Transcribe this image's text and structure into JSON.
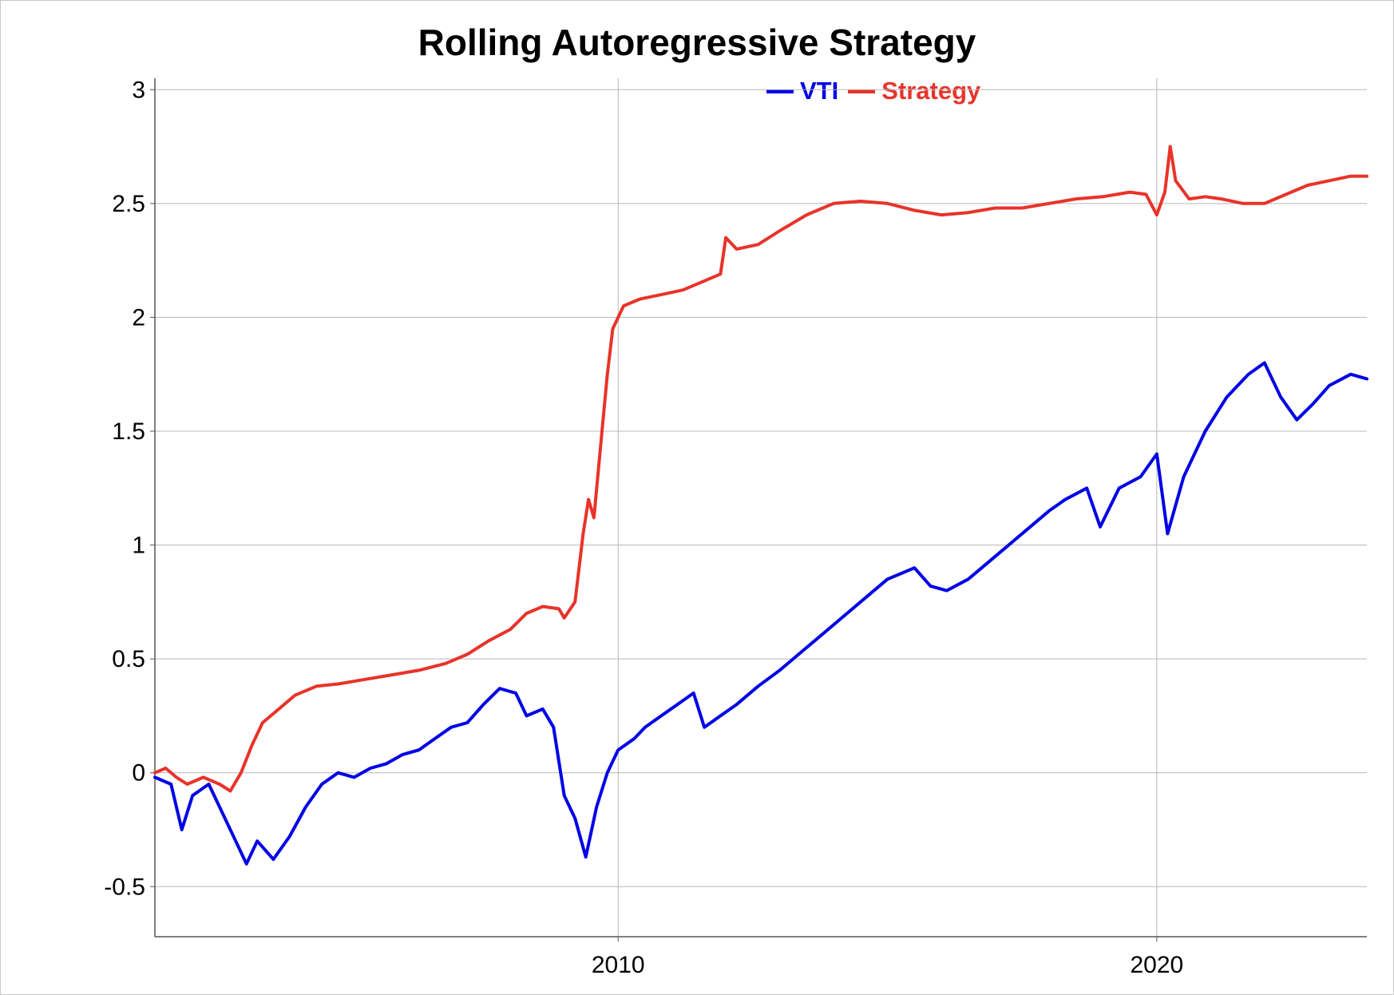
{
  "chart_data": {
    "type": "line",
    "title": "Rolling Autoregressive Strategy",
    "xlabel": "",
    "ylabel": "",
    "ylim": [
      -0.72,
      3.05
    ],
    "xlim": [
      2001.4,
      2023.9
    ],
    "y_ticks": [
      "-0.5",
      "0",
      "0.5",
      "1",
      "1.5",
      "2",
      "2.5",
      "3"
    ],
    "x_ticks": [
      "2010",
      "2020"
    ],
    "grid": true,
    "legend_position": "top-center",
    "series": [
      {
        "name": "VTI",
        "color": "#0000e6",
        "points": [
          [
            2001.4,
            -0.02
          ],
          [
            2001.7,
            -0.05
          ],
          [
            2001.9,
            -0.25
          ],
          [
            2002.1,
            -0.1
          ],
          [
            2002.4,
            -0.05
          ],
          [
            2002.6,
            -0.15
          ],
          [
            2002.9,
            -0.3
          ],
          [
            2003.1,
            -0.4
          ],
          [
            2003.3,
            -0.3
          ],
          [
            2003.6,
            -0.38
          ],
          [
            2003.9,
            -0.28
          ],
          [
            2004.2,
            -0.15
          ],
          [
            2004.5,
            -0.05
          ],
          [
            2004.8,
            0.0
          ],
          [
            2005.1,
            -0.02
          ],
          [
            2005.4,
            0.02
          ],
          [
            2005.7,
            0.04
          ],
          [
            2006.0,
            0.08
          ],
          [
            2006.3,
            0.1
          ],
          [
            2006.6,
            0.15
          ],
          [
            2006.9,
            0.2
          ],
          [
            2007.2,
            0.22
          ],
          [
            2007.5,
            0.3
          ],
          [
            2007.8,
            0.37
          ],
          [
            2008.1,
            0.35
          ],
          [
            2008.3,
            0.25
          ],
          [
            2008.6,
            0.28
          ],
          [
            2008.8,
            0.2
          ],
          [
            2009.0,
            -0.1
          ],
          [
            2009.2,
            -0.2
          ],
          [
            2009.4,
            -0.37
          ],
          [
            2009.6,
            -0.15
          ],
          [
            2009.8,
            0.0
          ],
          [
            2010.0,
            0.1
          ],
          [
            2010.3,
            0.15
          ],
          [
            2010.5,
            0.2
          ],
          [
            2010.8,
            0.25
          ],
          [
            2011.1,
            0.3
          ],
          [
            2011.4,
            0.35
          ],
          [
            2011.6,
            0.2
          ],
          [
            2011.9,
            0.25
          ],
          [
            2012.2,
            0.3
          ],
          [
            2012.6,
            0.38
          ],
          [
            2013.0,
            0.45
          ],
          [
            2013.5,
            0.55
          ],
          [
            2014.0,
            0.65
          ],
          [
            2014.5,
            0.75
          ],
          [
            2015.0,
            0.85
          ],
          [
            2015.5,
            0.9
          ],
          [
            2015.8,
            0.82
          ],
          [
            2016.1,
            0.8
          ],
          [
            2016.5,
            0.85
          ],
          [
            2017.0,
            0.95
          ],
          [
            2017.5,
            1.05
          ],
          [
            2018.0,
            1.15
          ],
          [
            2018.3,
            1.2
          ],
          [
            2018.7,
            1.25
          ],
          [
            2018.95,
            1.08
          ],
          [
            2019.3,
            1.25
          ],
          [
            2019.7,
            1.3
          ],
          [
            2020.0,
            1.4
          ],
          [
            2020.2,
            1.05
          ],
          [
            2020.5,
            1.3
          ],
          [
            2020.9,
            1.5
          ],
          [
            2021.3,
            1.65
          ],
          [
            2021.7,
            1.75
          ],
          [
            2022.0,
            1.8
          ],
          [
            2022.3,
            1.65
          ],
          [
            2022.6,
            1.55
          ],
          [
            2022.9,
            1.62
          ],
          [
            2023.2,
            1.7
          ],
          [
            2023.6,
            1.75
          ],
          [
            2023.9,
            1.73
          ]
        ]
      },
      {
        "name": "Strategy",
        "color": "#e8332a",
        "points": [
          [
            2001.4,
            0.0
          ],
          [
            2001.6,
            0.02
          ],
          [
            2001.8,
            -0.02
          ],
          [
            2002.0,
            -0.05
          ],
          [
            2002.3,
            -0.02
          ],
          [
            2002.6,
            -0.05
          ],
          [
            2002.8,
            -0.08
          ],
          [
            2003.0,
            0.0
          ],
          [
            2003.2,
            0.12
          ],
          [
            2003.4,
            0.22
          ],
          [
            2003.7,
            0.28
          ],
          [
            2004.0,
            0.34
          ],
          [
            2004.4,
            0.38
          ],
          [
            2004.8,
            0.39
          ],
          [
            2005.3,
            0.41
          ],
          [
            2005.8,
            0.43
          ],
          [
            2006.3,
            0.45
          ],
          [
            2006.8,
            0.48
          ],
          [
            2007.2,
            0.52
          ],
          [
            2007.6,
            0.58
          ],
          [
            2008.0,
            0.63
          ],
          [
            2008.3,
            0.7
          ],
          [
            2008.6,
            0.73
          ],
          [
            2008.9,
            0.72
          ],
          [
            2009.0,
            0.68
          ],
          [
            2009.2,
            0.75
          ],
          [
            2009.35,
            1.05
          ],
          [
            2009.45,
            1.2
          ],
          [
            2009.55,
            1.12
          ],
          [
            2009.7,
            1.5
          ],
          [
            2009.8,
            1.75
          ],
          [
            2009.9,
            1.95
          ],
          [
            2010.1,
            2.05
          ],
          [
            2010.4,
            2.08
          ],
          [
            2010.8,
            2.1
          ],
          [
            2011.2,
            2.12
          ],
          [
            2011.6,
            2.16
          ],
          [
            2011.9,
            2.19
          ],
          [
            2012.0,
            2.35
          ],
          [
            2012.2,
            2.3
          ],
          [
            2012.6,
            2.32
          ],
          [
            2013.0,
            2.38
          ],
          [
            2013.5,
            2.45
          ],
          [
            2014.0,
            2.5
          ],
          [
            2014.5,
            2.51
          ],
          [
            2015.0,
            2.5
          ],
          [
            2015.5,
            2.47
          ],
          [
            2016.0,
            2.45
          ],
          [
            2016.5,
            2.46
          ],
          [
            2017.0,
            2.48
          ],
          [
            2017.5,
            2.48
          ],
          [
            2018.0,
            2.5
          ],
          [
            2018.5,
            2.52
          ],
          [
            2019.0,
            2.53
          ],
          [
            2019.5,
            2.55
          ],
          [
            2019.8,
            2.54
          ],
          [
            2020.0,
            2.45
          ],
          [
            2020.15,
            2.55
          ],
          [
            2020.25,
            2.75
          ],
          [
            2020.35,
            2.6
          ],
          [
            2020.6,
            2.52
          ],
          [
            2020.9,
            2.53
          ],
          [
            2021.2,
            2.52
          ],
          [
            2021.6,
            2.5
          ],
          [
            2022.0,
            2.5
          ],
          [
            2022.4,
            2.54
          ],
          [
            2022.8,
            2.58
          ],
          [
            2023.2,
            2.6
          ],
          [
            2023.6,
            2.62
          ],
          [
            2023.9,
            2.62
          ]
        ]
      }
    ]
  }
}
